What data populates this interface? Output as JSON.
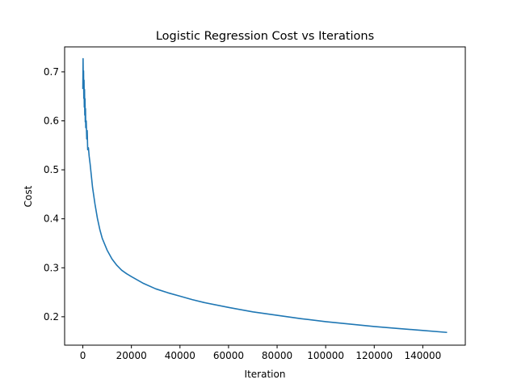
{
  "chart_data": {
    "type": "line",
    "title": "Logistic Regression Cost vs Iterations",
    "xlabel": "Iteration",
    "ylabel": "Cost",
    "xlim": [
      -7500,
      157500
    ],
    "ylim": [
      0.142,
      0.751
    ],
    "x_ticks": [
      0,
      20000,
      40000,
      60000,
      80000,
      100000,
      120000,
      140000
    ],
    "y_ticks": [
      0.2,
      0.3,
      0.4,
      0.5,
      0.6,
      0.7
    ],
    "x_tick_labels": [
      "0",
      "20000",
      "40000",
      "60000",
      "80000",
      "100000",
      "120000",
      "140000"
    ],
    "y_tick_labels": [
      "0.2",
      "0.3",
      "0.4",
      "0.5",
      "0.6",
      "0.7"
    ],
    "grid": false,
    "series": [
      {
        "color": "#1f77b4",
        "x": [
          0,
          100,
          200,
          300,
          400,
          500,
          600,
          700,
          800,
          900,
          1000,
          1100,
          1200,
          1400,
          1600,
          1800,
          2000,
          2300,
          2600,
          3000,
          3500,
          4000,
          5000,
          6000,
          7000,
          8000,
          10000,
          12000,
          14000,
          16000,
          18000,
          20000,
          25000,
          30000,
          35000,
          40000,
          45000,
          50000,
          60000,
          70000,
          80000,
          90000,
          100000,
          110000,
          120000,
          130000,
          140000,
          150000
        ],
        "y": [
          0.665,
          0.727,
          0.672,
          0.702,
          0.646,
          0.683,
          0.628,
          0.664,
          0.612,
          0.645,
          0.598,
          0.625,
          0.586,
          0.6,
          0.563,
          0.58,
          0.541,
          0.545,
          0.528,
          0.512,
          0.488,
          0.464,
          0.43,
          0.401,
          0.378,
          0.36,
          0.336,
          0.318,
          0.305,
          0.295,
          0.288,
          0.282,
          0.268,
          0.257,
          0.249,
          0.242,
          0.235,
          0.229,
          0.219,
          0.21,
          0.203,
          0.196,
          0.19,
          0.185,
          0.18,
          0.176,
          0.172,
          0.168
        ]
      }
    ]
  }
}
